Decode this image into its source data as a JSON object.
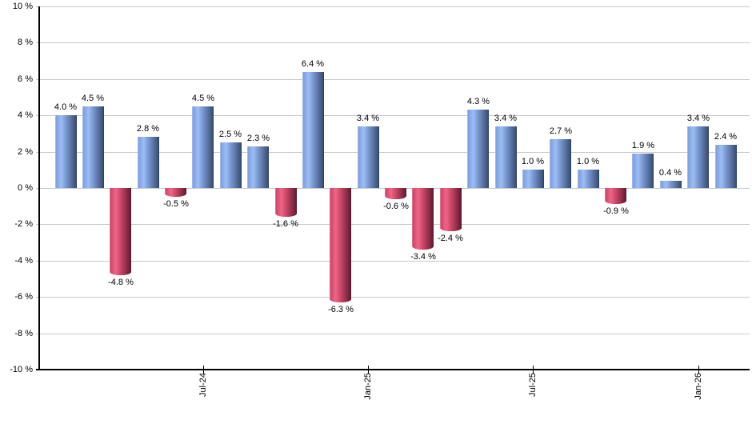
{
  "chart_data": {
    "type": "bar",
    "title": "",
    "xlabel": "",
    "ylabel": "",
    "unit": "%",
    "ylim": [
      -10,
      10
    ],
    "grid": "horizontal-every-2",
    "legend": "none",
    "values": [
      4.0,
      4.5,
      -4.8,
      2.8,
      -0.5,
      4.5,
      2.5,
      2.3,
      -1.6,
      6.4,
      -6.3,
      3.4,
      -0.6,
      -3.4,
      -2.4,
      4.3,
      3.4,
      1.0,
      2.7,
      1.0,
      -0.9,
      1.9,
      0.4,
      3.4,
      2.4
    ],
    "value_labels": [
      "4.0 %",
      "4.5 %",
      "-4.8 %",
      "2.8 %",
      "-0.5 %",
      "4.5 %",
      "2.5 %",
      "2.3 %",
      "-1.6 %",
      "6.4 %",
      "-6.3 %",
      "3.4 %",
      "-0.6 %",
      "-3.4 %",
      "-2.4 %",
      "4.3 %",
      "3.4 %",
      "1.0 %",
      "2.7 %",
      "1.0 %",
      "-0.9 %",
      "1.9 %",
      "0.4 %",
      "3.4 %",
      "2.4 %"
    ],
    "y_ticks": [
      {
        "value": 10,
        "label": "10 %"
      },
      {
        "value": 8,
        "label": "8 %"
      },
      {
        "value": 6,
        "label": "6 %"
      },
      {
        "value": 4,
        "label": "4 %"
      },
      {
        "value": 2,
        "label": "2 %"
      },
      {
        "value": 0,
        "label": "0 %"
      },
      {
        "value": -2,
        "label": "-2 %"
      },
      {
        "value": -4,
        "label": "-4 %"
      },
      {
        "value": -6,
        "label": "-6 %"
      },
      {
        "value": -8,
        "label": "-8 %"
      },
      {
        "value": -10,
        "label": "-10 %"
      }
    ],
    "x_ticks": [
      {
        "bar_index": 5,
        "label": "Jul-24"
      },
      {
        "bar_index": 11,
        "label": "Jan-25"
      },
      {
        "bar_index": 17,
        "label": "Jul-25"
      },
      {
        "bar_index": 23,
        "label": "Jan-26"
      }
    ],
    "colors": {
      "positive_base": "#7e9ddb",
      "positive_highlight": "#9cbdf6",
      "positive_mid": "#7795cd",
      "positive_dark": "#3a4f74",
      "negative_base": "#cd4565",
      "negative_highlight": "#ef6589",
      "negative_mid": "#c94666",
      "negative_dark": "#671c34",
      "gridline": "#c9c9c9",
      "axis": "#000000",
      "label_text": "#000000",
      "background": "#ffffff"
    }
  }
}
